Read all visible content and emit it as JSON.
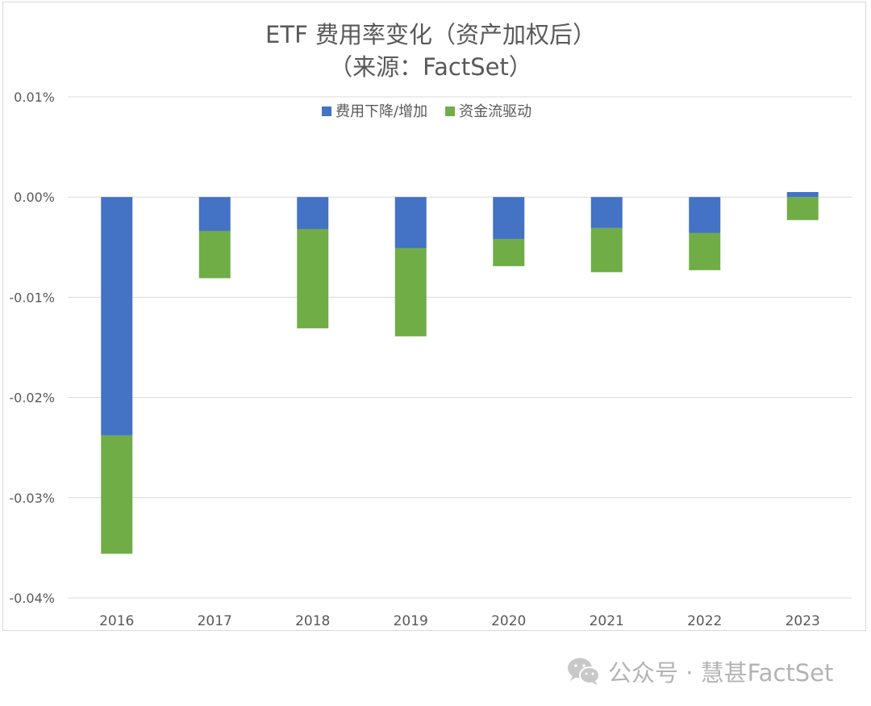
{
  "chart_data": {
    "type": "bar",
    "stacked": true,
    "title": "ETF 费用率变化（资产加权后）",
    "subtitle": "（来源：FactSet）",
    "categories": [
      "2016",
      "2017",
      "2018",
      "2019",
      "2020",
      "2021",
      "2022",
      "2023"
    ],
    "series": [
      {
        "name": "费用下降/增加",
        "color": "#4472C4",
        "values": [
          -0.0238,
          -0.0034,
          -0.0032,
          -0.0051,
          -0.0042,
          -0.0031,
          -0.0036,
          0.0005
        ]
      },
      {
        "name": "资金流驱动",
        "color": "#70AD47",
        "values": [
          -0.0118,
          -0.0047,
          -0.0099,
          -0.0088,
          -0.0027,
          -0.0044,
          -0.0037,
          -0.0023
        ]
      }
    ],
    "ylim": [
      -0.04,
      0.01
    ],
    "yticks": [
      "0.01%",
      "0.00%",
      "-0.01%",
      "-0.02%",
      "-0.03%",
      "-0.04%"
    ],
    "ytick_values": [
      0.01,
      0.0,
      -0.01,
      -0.02,
      -0.03,
      -0.04
    ],
    "grid": true,
    "legend_position": "top-center",
    "xlabel": "",
    "ylabel": ""
  },
  "watermark": {
    "text": "公众号 · 慧甚FactSet",
    "icon": "wechat-icon"
  }
}
